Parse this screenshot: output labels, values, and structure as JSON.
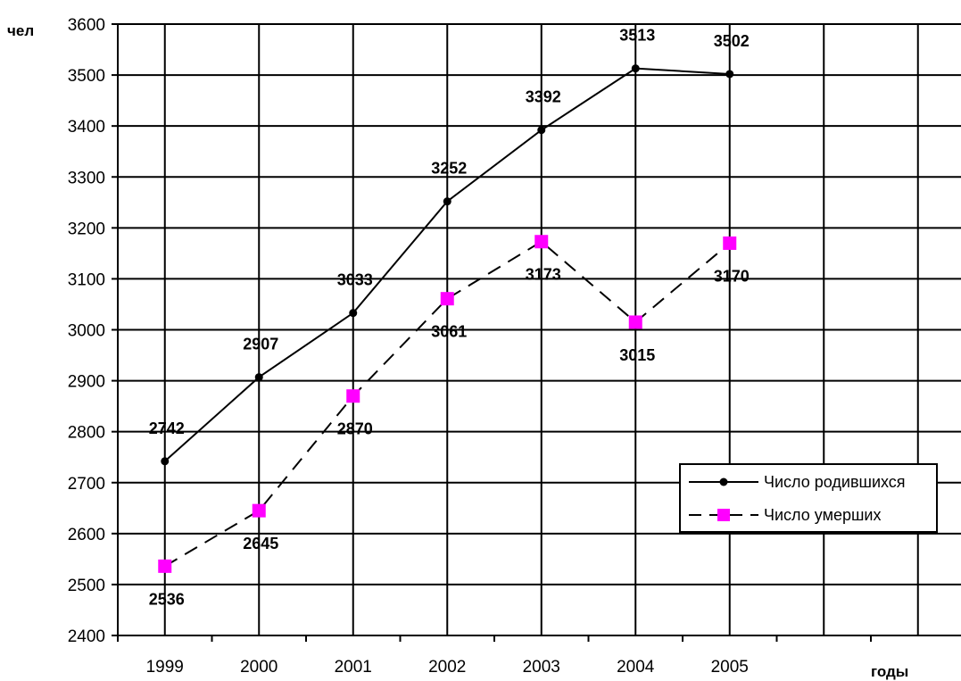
{
  "chart_data": {
    "type": "line",
    "title": "",
    "xlabel": "годы",
    "ylabel": "чел",
    "categories": [
      "1999",
      "2000",
      "2001",
      "2002",
      "2003",
      "2004",
      "2005"
    ],
    "ylim": [
      2400,
      3600
    ],
    "ytick_step": 100,
    "grid": true,
    "legend_position": "right",
    "series": [
      {
        "name": "Число родившихся",
        "values": [
          2742,
          2907,
          3033,
          3252,
          3392,
          3513,
          3502
        ],
        "color": "#000000",
        "line_style": "solid",
        "marker": "circle"
      },
      {
        "name": "Число умерших",
        "values": [
          2536,
          2645,
          2870,
          3061,
          3173,
          3015,
          3170
        ],
        "color": "#000000",
        "marker_color": "#ff00ff",
        "line_style": "dashed",
        "marker": "square"
      }
    ]
  }
}
